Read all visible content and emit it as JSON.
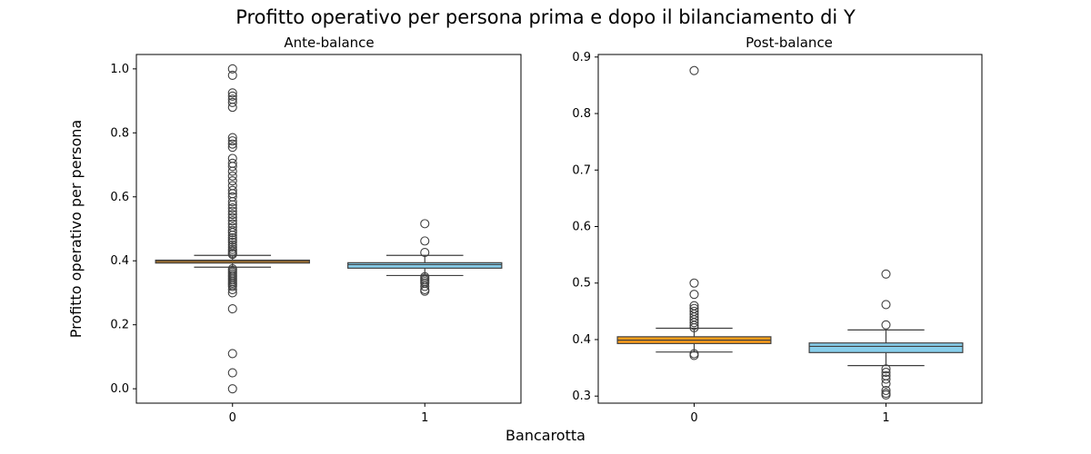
{
  "figure": {
    "title": "Profitto operativo per persona prima e dopo il bilanciamento di Y",
    "xlabel": "Bancarotta",
    "ylabel": "Profitto operativo per persona"
  },
  "colors": {
    "class0": "#ff9e1b",
    "class1": "#87ceeb",
    "edge": "#3f3f3f"
  },
  "chart_data": [
    {
      "type": "box",
      "title": "Ante-balance",
      "categories": [
        "0",
        "1"
      ],
      "ylim": [
        -0.045,
        1.045
      ],
      "yticks": [
        0.0,
        0.2,
        0.4,
        0.6,
        0.8,
        1.0
      ],
      "ytick_labels": [
        "0.0",
        "0.2",
        "0.4",
        "0.6",
        "0.8",
        "1.0"
      ],
      "boxes": [
        {
          "category": "0",
          "color_key": "class0",
          "whisker_low": 0.38,
          "q1": 0.393,
          "median": 0.398,
          "q3": 0.402,
          "whisker_high": 0.417,
          "outliers": [
            1.0,
            0.98,
            0.925,
            0.915,
            0.905,
            0.895,
            0.88,
            0.785,
            0.775,
            0.765,
            0.755,
            0.72,
            0.705,
            0.695,
            0.68,
            0.665,
            0.65,
            0.635,
            0.62,
            0.61,
            0.6,
            0.585,
            0.575,
            0.565,
            0.555,
            0.545,
            0.535,
            0.525,
            0.515,
            0.505,
            0.495,
            0.488,
            0.48,
            0.472,
            0.465,
            0.458,
            0.45,
            0.443,
            0.436,
            0.43,
            0.424,
            0.42,
            0.375,
            0.37,
            0.365,
            0.36,
            0.355,
            0.35,
            0.345,
            0.34,
            0.335,
            0.33,
            0.325,
            0.32,
            0.31,
            0.3,
            0.25,
            0.11,
            0.05,
            0.0
          ]
        },
        {
          "category": "1",
          "color_key": "class1",
          "whisker_low": 0.354,
          "q1": 0.377,
          "median": 0.388,
          "q3": 0.394,
          "whisker_high": 0.417,
          "outliers": [
            0.516,
            0.462,
            0.426,
            0.35,
            0.345,
            0.34,
            0.335,
            0.33,
            0.32,
            0.31,
            0.305
          ]
        }
      ]
    },
    {
      "type": "box",
      "title": "Post-balance",
      "categories": [
        "0",
        "1"
      ],
      "ylim": [
        0.2875,
        0.9045
      ],
      "yticks": [
        0.3,
        0.4,
        0.5,
        0.6,
        0.7,
        0.8,
        0.9
      ],
      "ytick_labels": [
        "0.3",
        "0.4",
        "0.5",
        "0.6",
        "0.7",
        "0.8",
        "0.9"
      ],
      "boxes": [
        {
          "category": "0",
          "color_key": "class0",
          "whisker_low": 0.378,
          "q1": 0.393,
          "median": 0.399,
          "q3": 0.405,
          "whisker_high": 0.42,
          "outliers": [
            0.876,
            0.5,
            0.48,
            0.46,
            0.455,
            0.45,
            0.445,
            0.44,
            0.435,
            0.43,
            0.425,
            0.421,
            0.375,
            0.372
          ]
        },
        {
          "category": "1",
          "color_key": "class1",
          "whisker_low": 0.354,
          "q1": 0.377,
          "median": 0.388,
          "q3": 0.394,
          "whisker_high": 0.417,
          "outliers": [
            0.516,
            0.462,
            0.426,
            0.348,
            0.342,
            0.336,
            0.33,
            0.322,
            0.31,
            0.305,
            0.302
          ]
        }
      ]
    }
  ]
}
